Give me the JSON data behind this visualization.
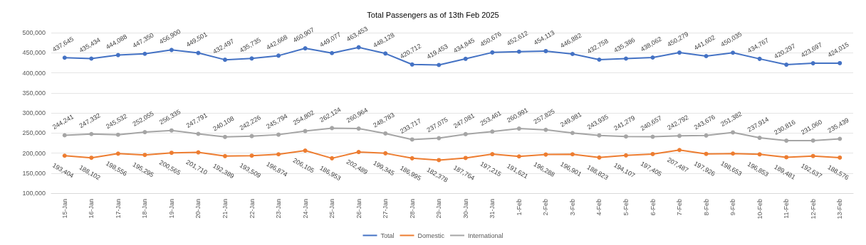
{
  "chart_data": {
    "type": "line",
    "title": "Total Passengers as of 13th Feb 2025",
    "categories": [
      "15-Jan",
      "16-Jan",
      "17-Jan",
      "18-Jan",
      "19-Jan",
      "20-Jan",
      "21-Jan",
      "22-Jan",
      "23-Jan",
      "24-Jan",
      "25-Jan",
      "26-Jan",
      "27-Jan",
      "28-Jan",
      "29-Jan",
      "30-Jan",
      "31-Jan",
      "1-Feb",
      "2-Feb",
      "3-Feb",
      "4-Feb",
      "5-Feb",
      "6-Feb",
      "7-Feb",
      "8-Feb",
      "9-Feb",
      "10-Feb",
      "11-Feb",
      "12-Feb",
      "13-Feb"
    ],
    "series": [
      {
        "name": "Total",
        "color": "#4472c4",
        "values": [
          437645,
          435434,
          444088,
          447350,
          456900,
          449501,
          432497,
          435735,
          442668,
          460907,
          449077,
          463453,
          448128,
          420712,
          419453,
          434845,
          450676,
          452612,
          454113,
          446882,
          432758,
          435386,
          438062,
          450279,
          441602,
          450035,
          434767,
          420297,
          423697,
          424015
        ],
        "value_labels": [
          "437,645",
          "435,434",
          "444,088",
          "447,350",
          "456,900",
          "449,501",
          "432,497",
          "435,735",
          "442,668",
          "460,907",
          "449,077",
          "463,453",
          "448,128",
          "420,712",
          "419,453",
          "434,845",
          "450,676",
          "452,612",
          "454,113",
          "446,882",
          "432,758",
          "435,386",
          "438,062",
          "450,279",
          "441,602",
          "450,035",
          "434,767",
          "420,297",
          "423,697",
          "424,015"
        ]
      },
      {
        "name": "Domestic",
        "color": "#ed7d31",
        "values": [
          193404,
          188102,
          198556,
          195295,
          200565,
          201710,
          192389,
          193509,
          196874,
          206105,
          186953,
          202489,
          199345,
          186995,
          182378,
          187764,
          197215,
          191621,
          196288,
          196901,
          188823,
          194107,
          197405,
          207487,
          197926,
          198653,
          196853,
          189481,
          192637,
          188576
        ],
        "value_labels": [
          "193,404",
          "188,102",
          "198,556",
          "195,295",
          "200,565",
          "201,710",
          "192,389",
          "193,509",
          "196,874",
          "206,105",
          "186,953",
          "202,489",
          "199,345",
          "186,995",
          "182,378",
          "187,764",
          "197,215",
          "191,621",
          "196,288",
          "196,901",
          "188,823",
          "194,107",
          "197,405",
          "207,487",
          "197,926",
          "198,653",
          "196,853",
          "189,481",
          "192,637",
          "188,576"
        ]
      },
      {
        "name": "International",
        "color": "#a5a5a5",
        "values": [
          244241,
          247332,
          245532,
          252055,
          256335,
          247791,
          240108,
          242226,
          245794,
          254802,
          262124,
          260964,
          248783,
          233717,
          237075,
          247081,
          253461,
          260991,
          257825,
          249981,
          243935,
          241279,
          240657,
          242792,
          243676,
          251382,
          237914,
          230816,
          231060,
          235439
        ],
        "value_labels": [
          "244,241",
          "247,332",
          "245,532",
          "252,055",
          "256,335",
          "247,791",
          "240,108",
          "242,226",
          "245,794",
          "254,802",
          "262,124",
          "260,964",
          "248,783",
          "233,717",
          "237,075",
          "247,081",
          "253,461",
          "260,991",
          "257,825",
          "249,981",
          "243,935",
          "241,279",
          "240,657",
          "242,792",
          "243,676",
          "251,382",
          "237,914",
          "230,816",
          "231,060",
          "235,439"
        ]
      }
    ],
    "ylim": [
      100000,
      500000
    ],
    "yticks": [
      {
        "value": 100000,
        "label": "100,000"
      },
      {
        "value": 150000,
        "label": "150,000"
      },
      {
        "value": 200000,
        "label": "200,000"
      },
      {
        "value": 250000,
        "label": "250,000"
      },
      {
        "value": 300000,
        "label": "300,000"
      },
      {
        "value": 350000,
        "label": "350,000"
      },
      {
        "value": 400000,
        "label": "400,000"
      },
      {
        "value": 450000,
        "label": "450,000"
      },
      {
        "value": 500000,
        "label": "500,000"
      }
    ],
    "grid": "y",
    "legend": "bottom",
    "marker": "circle",
    "line_style": "solid"
  }
}
